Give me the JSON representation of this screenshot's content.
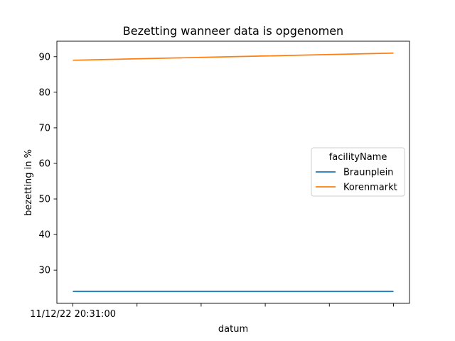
{
  "chart_data": {
    "type": "line",
    "title": "Bezetting wanneer data is opgenomen",
    "xlabel": "datum",
    "ylabel": "bezetting in %",
    "x_tick_labels": [
      "11/12/22 20:31:00",
      "",
      "",
      "",
      "",
      ""
    ],
    "x": [
      0,
      1,
      2,
      3,
      4,
      5
    ],
    "ylim": [
      20.65,
      94.35
    ],
    "yticks": [
      30,
      40,
      50,
      60,
      70,
      80,
      90
    ],
    "legend": {
      "title": "facilityName",
      "placement": "center-right"
    },
    "grid": false,
    "series": [
      {
        "name": "Braunplein",
        "color": "#1f77b4",
        "values": [
          24,
          24,
          24,
          24,
          24,
          24
        ]
      },
      {
        "name": "Korenmarkt",
        "color": "#ff7f0e",
        "values": [
          89,
          89.4,
          89.8,
          90.2,
          90.6,
          91
        ]
      }
    ]
  }
}
